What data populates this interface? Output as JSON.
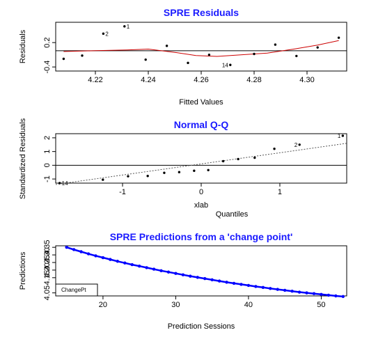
{
  "theme": {
    "title_color": "#1a1aff",
    "smooth_color": "#cc0000",
    "pred_color": "#0000ff",
    "ink": "#000000",
    "ref_line": "#555555"
  },
  "chart_data": [
    {
      "type": "scatter",
      "title": "SPRE Residuals",
      "xlabel": "Fitted Values",
      "ylabel": "Residuals",
      "xlim": [
        4.205,
        4.315
      ],
      "ylim": [
        -0.5,
        0.7
      ],
      "xticks": [
        "4.22",
        "4.24",
        "4.26",
        "4.28",
        "4.30"
      ],
      "xtick_values": [
        4.22,
        4.24,
        4.26,
        4.28,
        4.3
      ],
      "yticks": [
        "-0.4",
        "0.2"
      ],
      "ytick_values": [
        -0.4,
        0.2
      ],
      "hline": 0,
      "points": [
        {
          "x": 4.208,
          "y": -0.2,
          "label": ""
        },
        {
          "x": 4.215,
          "y": -0.12,
          "label": ""
        },
        {
          "x": 4.223,
          "y": 0.42,
          "label": "2"
        },
        {
          "x": 4.231,
          "y": 0.6,
          "label": "1"
        },
        {
          "x": 4.239,
          "y": -0.22,
          "label": ""
        },
        {
          "x": 4.247,
          "y": 0.12,
          "label": ""
        },
        {
          "x": 4.255,
          "y": -0.3,
          "label": ""
        },
        {
          "x": 4.263,
          "y": -0.1,
          "label": ""
        },
        {
          "x": 4.271,
          "y": -0.35,
          "label": "14"
        },
        {
          "x": 4.28,
          "y": -0.08,
          "label": ""
        },
        {
          "x": 4.288,
          "y": 0.15,
          "label": ""
        },
        {
          "x": 4.296,
          "y": -0.13,
          "label": ""
        },
        {
          "x": 4.304,
          "y": 0.08,
          "label": ""
        },
        {
          "x": 4.312,
          "y": 0.32,
          "label": ""
        }
      ],
      "smooth": [
        {
          "x": 4.208,
          "y": -0.02
        },
        {
          "x": 4.22,
          "y": 0.0
        },
        {
          "x": 4.232,
          "y": 0.02
        },
        {
          "x": 4.24,
          "y": 0.04
        },
        {
          "x": 4.25,
          "y": -0.04
        },
        {
          "x": 4.258,
          "y": -0.12
        },
        {
          "x": 4.266,
          "y": -0.14
        },
        {
          "x": 4.275,
          "y": -0.1
        },
        {
          "x": 4.285,
          "y": -0.06
        },
        {
          "x": 4.295,
          "y": 0.04
        },
        {
          "x": 4.304,
          "y": 0.14
        },
        {
          "x": 4.312,
          "y": 0.25
        }
      ]
    },
    {
      "type": "scatter",
      "title": "Normal Q-Q",
      "xlabel": "xlab",
      "subxlabel": "Quantiles",
      "ylabel": "Standardized Residuals",
      "xlim": [
        -1.85,
        1.85
      ],
      "ylim": [
        -1.3,
        2.3
      ],
      "xticks": [
        "-1",
        "0",
        "1"
      ],
      "xtick_values": [
        -1,
        0,
        1
      ],
      "yticks": [
        "-1",
        "0",
        "1",
        "2"
      ],
      "ytick_values": [
        -1,
        0,
        1,
        2
      ],
      "hline": 0,
      "ref_line": [
        {
          "x": -1.85,
          "y": -1.4
        },
        {
          "x": 1.85,
          "y": 1.6
        }
      ],
      "points": [
        {
          "x": -1.8,
          "y": -1.3,
          "label": "14"
        },
        {
          "x": -1.25,
          "y": -1.05,
          "label": ""
        },
        {
          "x": -0.93,
          "y": -0.8,
          "label": ""
        },
        {
          "x": -0.68,
          "y": -0.78,
          "label": ""
        },
        {
          "x": -0.47,
          "y": -0.55,
          "label": ""
        },
        {
          "x": -0.28,
          "y": -0.5,
          "label": ""
        },
        {
          "x": -0.09,
          "y": -0.4,
          "label": ""
        },
        {
          "x": 0.09,
          "y": -0.35,
          "label": ""
        },
        {
          "x": 0.28,
          "y": 0.3,
          "label": ""
        },
        {
          "x": 0.47,
          "y": 0.45,
          "label": ""
        },
        {
          "x": 0.68,
          "y": 0.55,
          "label": ""
        },
        {
          "x": 0.93,
          "y": 1.2,
          "label": ""
        },
        {
          "x": 1.25,
          "y": 1.5,
          "label": "2"
        },
        {
          "x": 1.8,
          "y": 2.15,
          "label": "1"
        }
      ]
    },
    {
      "type": "line",
      "title": "SPRE Predictions from a 'change point'",
      "xlabel": "Prediction Sessions",
      "ylabel": "Predictions",
      "xlim": [
        13.5,
        53.5
      ],
      "ylim": [
        4.03,
        4.36
      ],
      "xticks": [
        "20",
        "30",
        "40",
        "50"
      ],
      "xtick_values": [
        20,
        30,
        40,
        50
      ],
      "yticks": [
        "4.05",
        "4.15",
        "4.20",
        "4.25",
        "4.30",
        "4.35"
      ],
      "ytick_values": [
        4.05,
        4.15,
        4.2,
        4.25,
        4.3,
        4.35
      ],
      "legend_label": "ChangePt",
      "x": [
        15,
        16,
        17,
        18,
        19,
        20,
        21,
        22,
        23,
        24,
        25,
        26,
        27,
        28,
        29,
        30,
        31,
        32,
        33,
        34,
        35,
        36,
        37,
        38,
        39,
        40,
        41,
        42,
        43,
        44,
        45,
        46,
        47,
        48,
        49,
        50,
        51,
        52,
        53
      ],
      "values": [
        4.35,
        4.335,
        4.321,
        4.307,
        4.294,
        4.282,
        4.27,
        4.258,
        4.247,
        4.236,
        4.226,
        4.216,
        4.206,
        4.196,
        4.187,
        4.178,
        4.169,
        4.16,
        4.152,
        4.144,
        4.136,
        4.128,
        4.12,
        4.113,
        4.106,
        4.099,
        4.092,
        4.086,
        4.079,
        4.073,
        4.067,
        4.061,
        4.055,
        4.05,
        4.045,
        4.04,
        4.035,
        4.03,
        4.026
      ]
    }
  ]
}
